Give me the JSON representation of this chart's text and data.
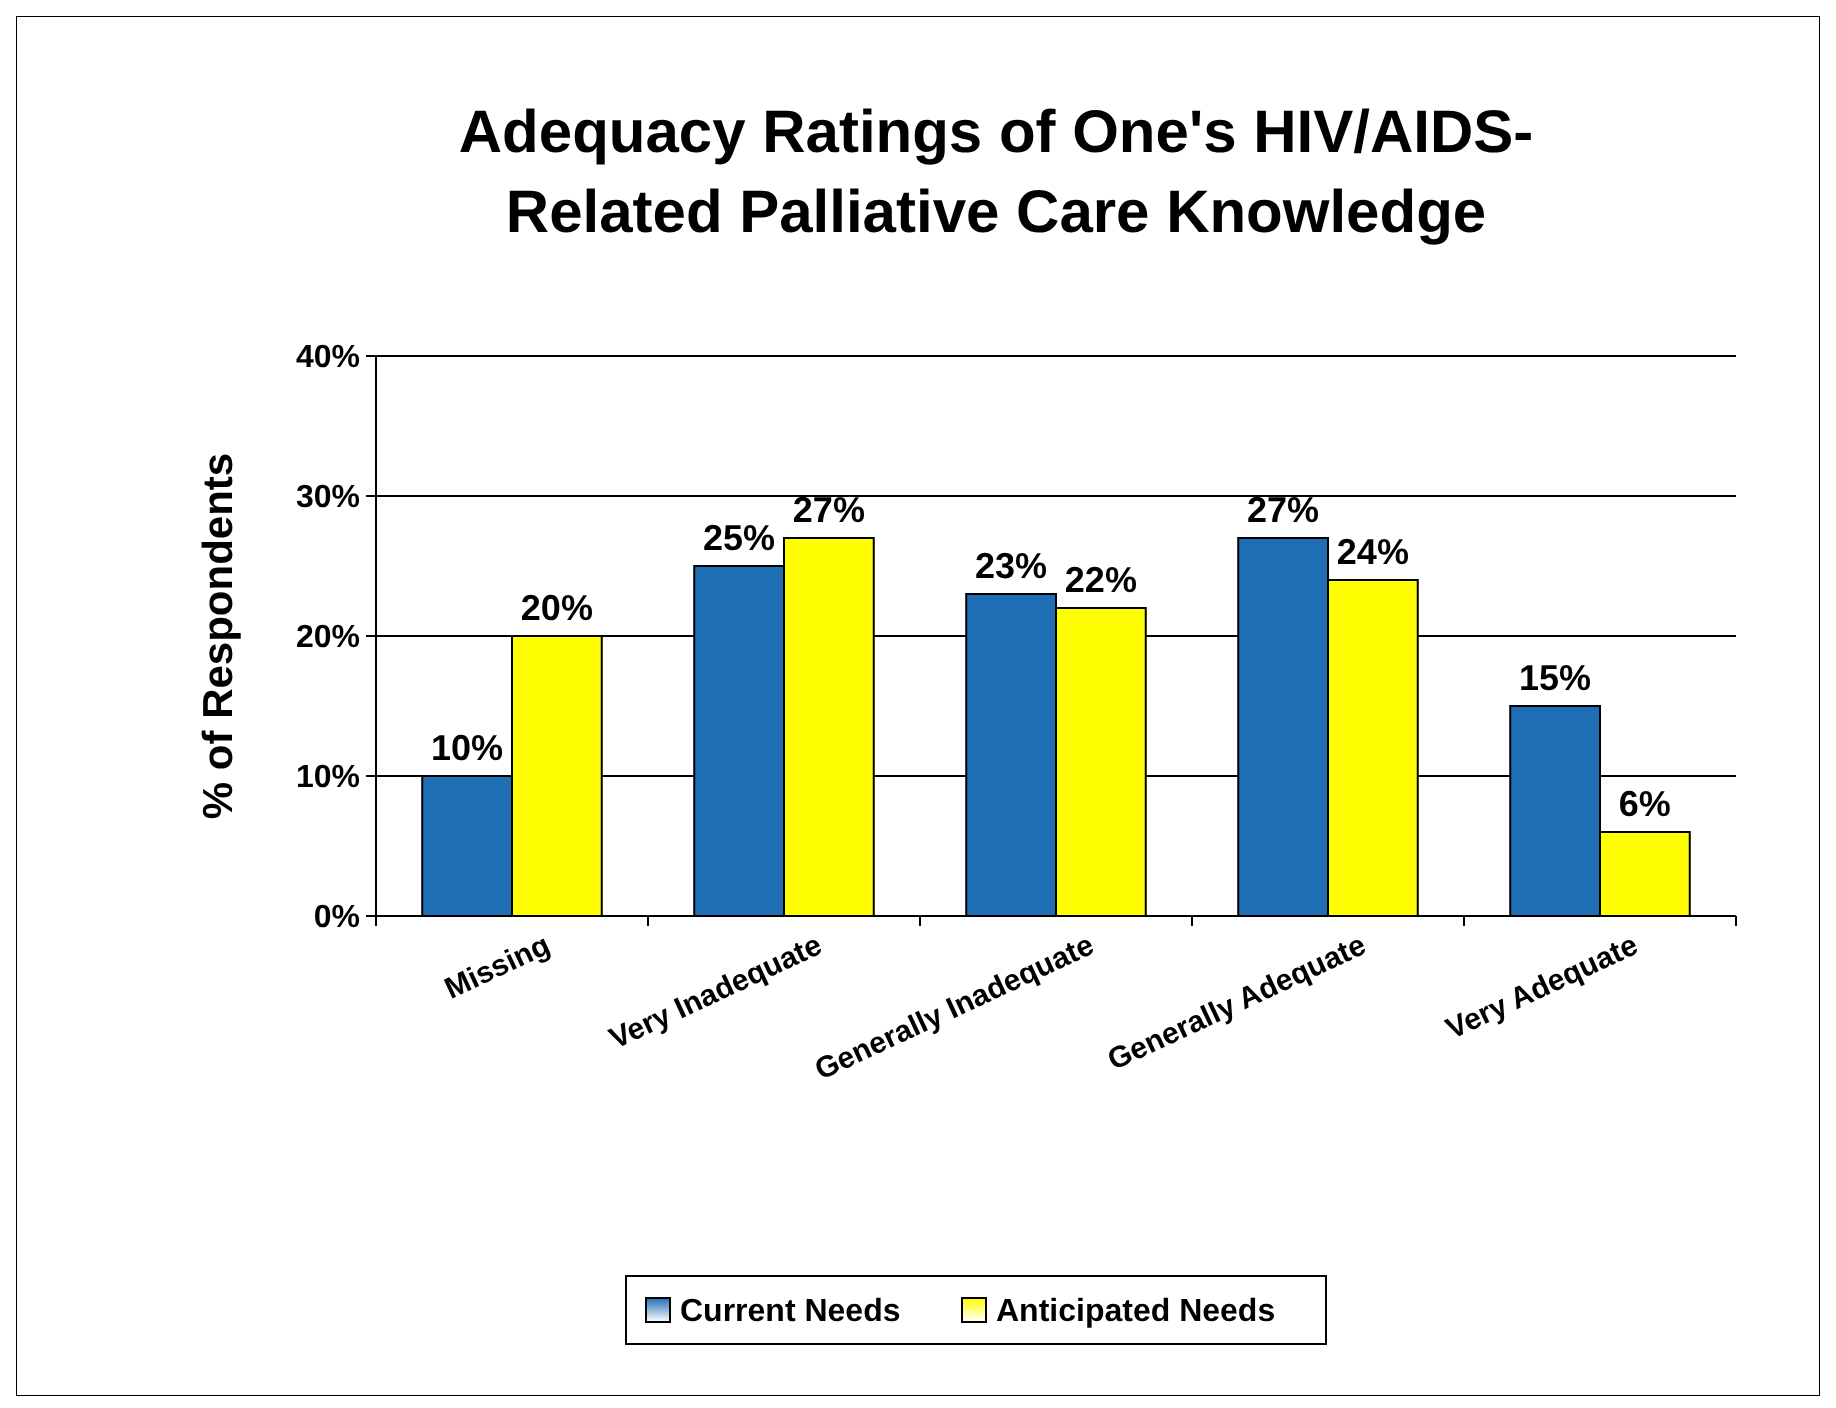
{
  "chart_data": {
    "type": "bar",
    "title": "Adequacy Ratings of One's HIV/AIDS-Related Palliative Care Knowledge",
    "ylabel": "% of Respondents",
    "categories": [
      "Missing",
      "Very Inadequate",
      "Generally Inadequate",
      "Generally Adequate",
      "Very Adequate"
    ],
    "series": [
      {
        "name": "Current Needs",
        "color": "#1f6fb4",
        "values": [
          10,
          25,
          23,
          27,
          15
        ],
        "value_labels": [
          "10%",
          "25%",
          "23%",
          "27%",
          "15%"
        ]
      },
      {
        "name": "Anticipated Needs",
        "color": "#ffff00",
        "values": [
          20,
          27,
          22,
          24,
          6
        ],
        "value_labels": [
          "20%",
          "27%",
          "22%",
          "24%",
          "6%"
        ]
      }
    ],
    "ylim": [
      0,
      40
    ],
    "yticks": [
      {
        "value": 0,
        "label": "0%"
      },
      {
        "value": 10,
        "label": "10%"
      },
      {
        "value": 20,
        "label": "20%"
      },
      {
        "value": 30,
        "label": "30%"
      },
      {
        "value": 40,
        "label": "40%"
      }
    ],
    "grid": "y",
    "legend": "bottom"
  }
}
